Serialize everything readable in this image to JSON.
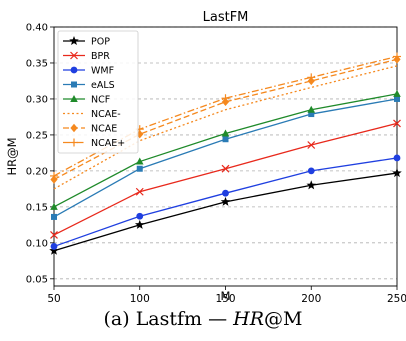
{
  "chart_data": {
    "type": "line",
    "title": "LastFM",
    "xlabel": "M",
    "ylabel": "HR@M",
    "x": [
      50,
      100,
      150,
      200,
      250
    ],
    "xlim": [
      50,
      250
    ],
    "ylim": [
      0.04,
      0.4
    ],
    "xticks": [
      "50",
      "100",
      "150",
      "200",
      "250"
    ],
    "yticks": [
      "0.05",
      "0.10",
      "0.15",
      "0.20",
      "0.25",
      "0.30",
      "0.35",
      "0.40"
    ],
    "grid": "horizontal dashed",
    "legend_position": "upper-left",
    "series": [
      {
        "name": "POP",
        "values": [
          0.089,
          0.125,
          0.157,
          0.18,
          0.197
        ],
        "color": "#000000",
        "marker": "star",
        "dash": "solid"
      },
      {
        "name": "BPR",
        "values": [
          0.111,
          0.171,
          0.203,
          0.236,
          0.266
        ],
        "color": "#e8291c",
        "marker": "x",
        "dash": "solid"
      },
      {
        "name": "WMF",
        "values": [
          0.095,
          0.137,
          0.169,
          0.2,
          0.218
        ],
        "color": "#1f3fe0",
        "marker": "circle",
        "dash": "solid"
      },
      {
        "name": "eALS",
        "values": [
          0.136,
          0.203,
          0.244,
          0.279,
          0.3
        ],
        "color": "#2a7bb5",
        "marker": "square",
        "dash": "solid"
      },
      {
        "name": "NCF",
        "values": [
          0.15,
          0.213,
          0.252,
          0.285,
          0.307
        ],
        "color": "#1f8a2a",
        "marker": "triangle",
        "dash": "solid"
      },
      {
        "name": "NCAE-",
        "values": [
          0.175,
          0.242,
          0.285,
          0.316,
          0.346
        ],
        "color": "#f5891f",
        "marker": "none",
        "dash": "dotted"
      },
      {
        "name": "NCAE",
        "values": [
          0.188,
          0.251,
          0.296,
          0.325,
          0.355
        ],
        "color": "#f5891f",
        "marker": "diamond",
        "dash": "dashed"
      },
      {
        "name": "NCAE+",
        "values": [
          0.193,
          0.258,
          0.301,
          0.33,
          0.359
        ],
        "color": "#f5891f",
        "marker": "plus",
        "dash": "dashdot"
      }
    ]
  },
  "caption": {
    "prefix": "(a) Lastfm — ",
    "metric": "HR",
    "suffix": "@M"
  }
}
